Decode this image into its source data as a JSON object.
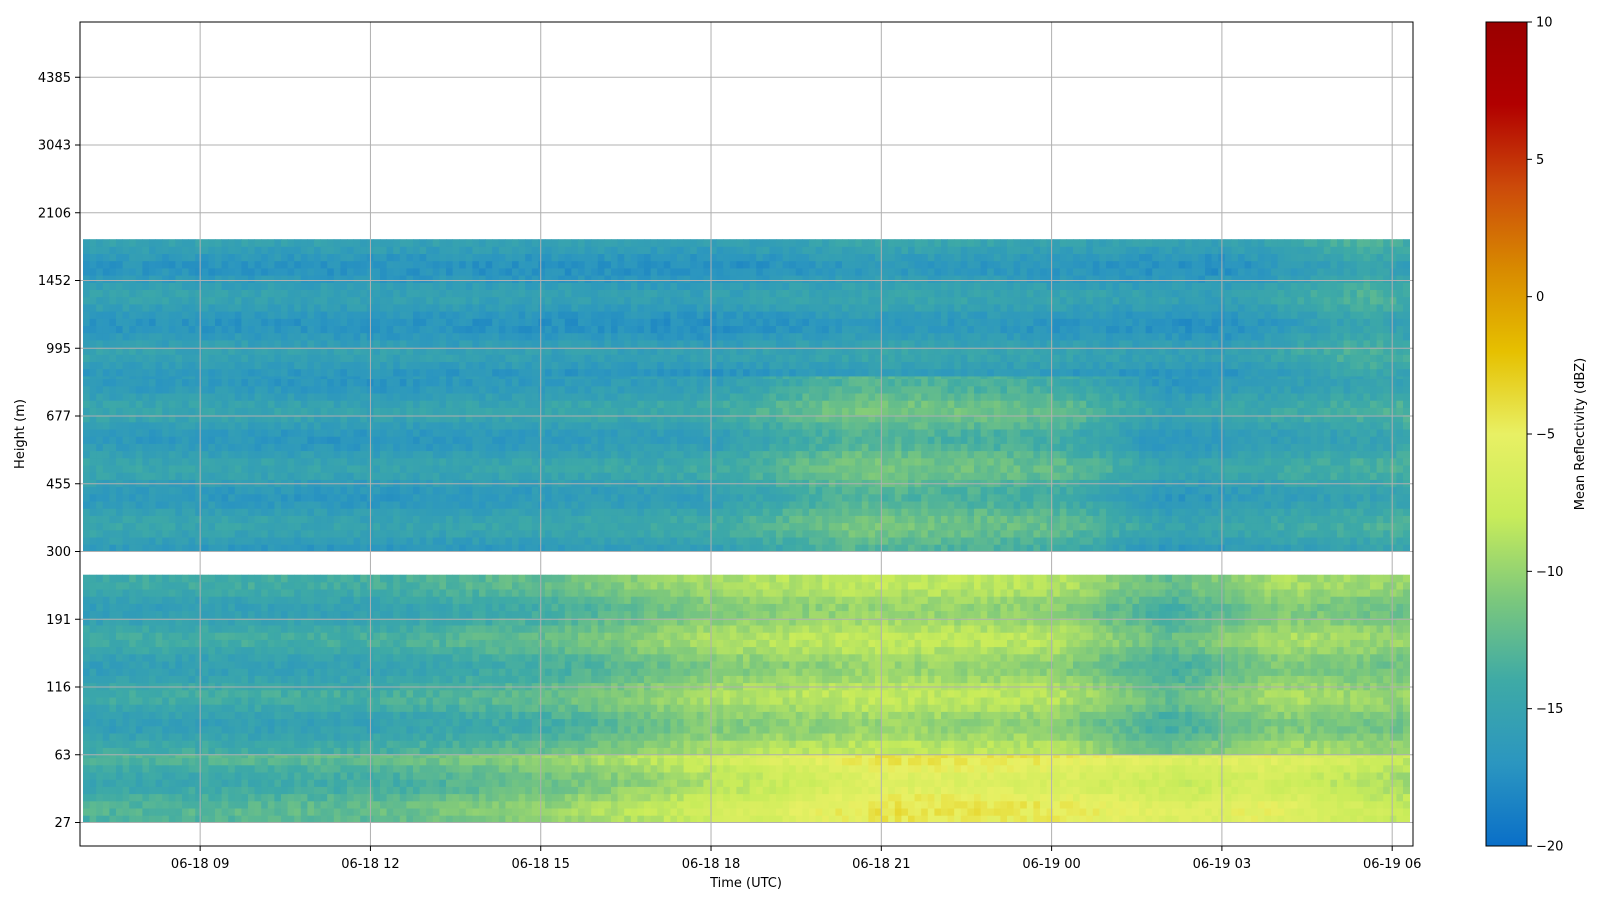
{
  "chart_data": {
    "type": "heatmap",
    "title": "",
    "xlabel": "Time (UTC)",
    "ylabel": "Height (m)",
    "x_ticks": [
      "06-18 09",
      "06-18 12",
      "06-18 15",
      "06-18 18",
      "06-18 21",
      "06-19 00",
      "06-19 03",
      "06-19 06"
    ],
    "y_ticks": [
      "27",
      "63",
      "116",
      "191",
      "300",
      "455",
      "677",
      "995",
      "1452",
      "2106",
      "3043",
      "4385"
    ],
    "x_range": [
      "06-18 06:53",
      "06-19 06:22"
    ],
    "grid": true,
    "colorbar": {
      "label": "Mean Reflectivity (dBZ)",
      "range": [
        -20,
        10
      ],
      "ticks": [
        "10",
        "5",
        "0",
        "−5",
        "−10",
        "−15",
        "−20"
      ],
      "colormap": [
        "#0a6fc8",
        "#2b96c0",
        "#3eaaa6",
        "#7cc87c",
        "#c8ec5a",
        "#e8f064",
        "#e6c000",
        "#d88a00",
        "#cc4a0a",
        "#b10000",
        "#9a0000"
      ]
    },
    "layers": [
      {
        "height_range": [
          "27",
          "63"
        ],
        "trend_dBZ": [
          [
            7.0,
            -14
          ],
          [
            12.0,
            -13
          ],
          [
            15.0,
            -11
          ],
          [
            19.0,
            -7
          ],
          [
            21.0,
            -5
          ],
          [
            24.0,
            -5.5
          ],
          [
            26.5,
            -7
          ],
          [
            27.5,
            -6
          ],
          [
            30.5,
            -9
          ]
        ]
      },
      {
        "height_range": [
          "63",
          "250"
        ],
        "trend_dBZ": [
          [
            7.0,
            -15
          ],
          [
            12.0,
            -14.5
          ],
          [
            15.0,
            -13
          ],
          [
            18.0,
            -10
          ],
          [
            21.0,
            -9
          ],
          [
            24.0,
            -9.5
          ],
          [
            26.0,
            -13
          ],
          [
            28.0,
            -10
          ],
          [
            30.5,
            -11
          ]
        ]
      },
      {
        "height_range": [
          "300",
          "850"
        ],
        "trend_dBZ": [
          [
            7.0,
            -15.5
          ],
          [
            12.0,
            -16
          ],
          [
            15.0,
            -15.5
          ],
          [
            18.0,
            -15
          ],
          [
            20.5,
            -12
          ],
          [
            24.0,
            -13
          ],
          [
            26.0,
            -16
          ],
          [
            28.0,
            -15
          ],
          [
            30.5,
            -14
          ]
        ]
      },
      {
        "height_range": [
          "850",
          "1800"
        ],
        "trend_dBZ": [
          [
            7.0,
            -16
          ],
          [
            18.0,
            -16.5
          ],
          [
            21.0,
            -15.5
          ],
          [
            27.0,
            -16.5
          ],
          [
            29.5,
            -14
          ],
          [
            30.5,
            -15
          ]
        ]
      }
    ]
  }
}
